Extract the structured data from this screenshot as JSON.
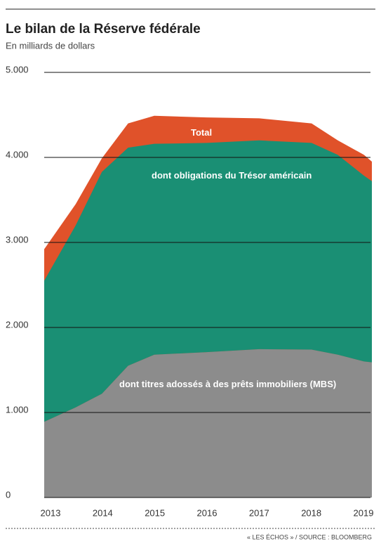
{
  "chart_data": {
    "type": "area",
    "title": "Le bilan de la Réserve fédérale",
    "subtitle": "En milliards de dollars",
    "source": "« LES ÉCHOS » / SOURCE : BLOOMBERG",
    "x": [
      2012.9,
      2013.5,
      2014,
      2014.5,
      2015,
      2016,
      2017,
      2018,
      2018.5,
      2019,
      2019.15
    ],
    "xlim": [
      2012.9,
      2019.15
    ],
    "xticks": [
      2013,
      2014,
      2015,
      2016,
      2017,
      2018,
      2019
    ],
    "ylim": [
      0,
      5000
    ],
    "yticks": [
      0,
      {
        "value": 1000,
        "label": "1.000"
      },
      {
        "value": 2000,
        "label": "2.000"
      },
      {
        "value": 3000,
        "label": "3.000"
      },
      {
        "value": 4000,
        "label": "4.000"
      },
      {
        "value": 5000,
        "label": "5.000"
      }
    ],
    "grid": true,
    "total": {
      "name": "Total",
      "color": "#e0522a",
      "values": [
        2920,
        3450,
        3990,
        4400,
        4490,
        4470,
        4460,
        4400,
        4200,
        4030,
        3950
      ]
    },
    "series": [
      {
        "name": "dont titres adossés à des prêts immobiliers (MBS)",
        "color": "#8c8c8c",
        "values": [
          890,
          1060,
          1220,
          1550,
          1680,
          1710,
          1745,
          1740,
          1680,
          1600,
          1590
        ]
      },
      {
        "name": "dont obligations du Trésor américain",
        "color": "#1a8f74",
        "values": [
          1660,
          2140,
          2610,
          2565,
          2480,
          2460,
          2455,
          2430,
          2350,
          2185,
          2130
        ]
      }
    ]
  }
}
